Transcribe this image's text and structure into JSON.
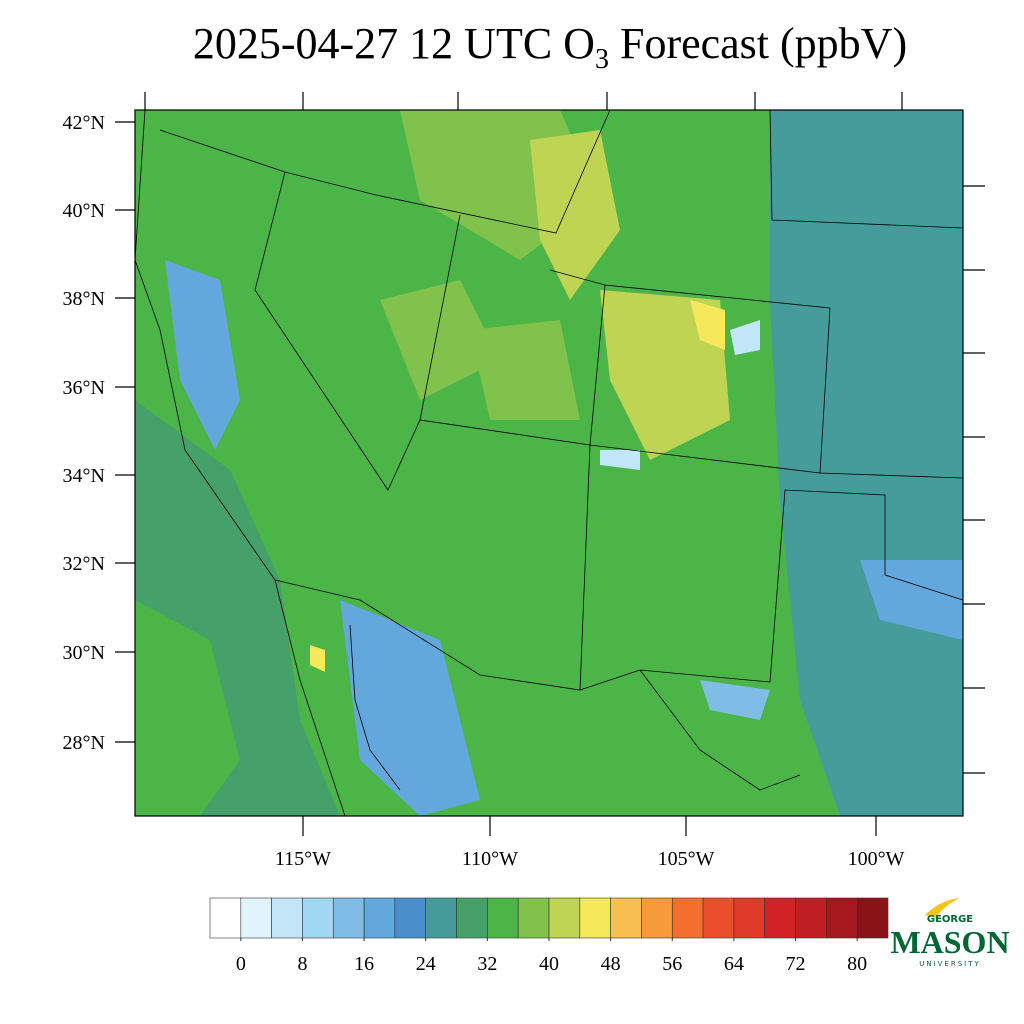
{
  "header": {
    "title_main": "2025-04-27 12 UTC O",
    "title_sub": "3",
    "title_end": " Forecast (ppbV)"
  },
  "map": {
    "lat_labels": [
      "42°N",
      "40°N",
      "38°N",
      "36°N",
      "34°N",
      "32°N",
      "30°N",
      "28°N"
    ],
    "lon_labels": [
      "115°W",
      "110°W",
      "105°W",
      "100°W"
    ]
  },
  "colorbar": {
    "ticks": [
      0,
      8,
      16,
      24,
      32,
      40,
      48,
      56,
      64,
      72,
      80
    ],
    "colors": [
      "#ffffff",
      "#e1f3fb",
      "#c0e6f7",
      "#a0d8f2",
      "#80bde6",
      "#62a8dc",
      "#4a8fcc",
      "#469c9a",
      "#45a06a",
      "#4bb548",
      "#80c24b",
      "#bfd452",
      "#f5e85a",
      "#f8c051",
      "#f79a3c",
      "#f46e2e",
      "#ea4e2a",
      "#e03a2a",
      "#d22228",
      "#be1e24",
      "#a5181e",
      "#8a1318"
    ]
  },
  "logo": {
    "top": "GEORGE",
    "main": "MASON",
    "bottom": "UNIVERSITY"
  }
}
